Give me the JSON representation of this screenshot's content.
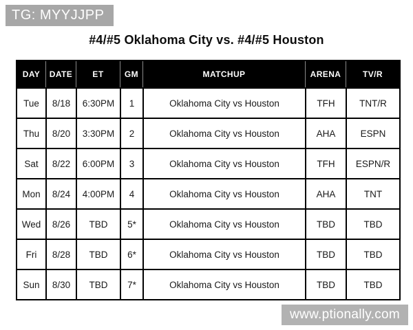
{
  "tag": {
    "label": "TG: MYYJJPP"
  },
  "title": "#4/#5 Oklahoma City vs. #4/#5 Houston",
  "table": {
    "columns": [
      "DAY",
      "DATE",
      "ET",
      "GM",
      "MATCHUP",
      "ARENA",
      "TV/R"
    ],
    "rows": [
      {
        "day": "Tue",
        "date": "8/18",
        "et": "6:30PM",
        "gm": "1",
        "matchup": "Oklahoma City vs Houston",
        "arena": "TFH",
        "tv": "TNT/R"
      },
      {
        "day": "Thu",
        "date": "8/20",
        "et": "3:30PM",
        "gm": "2",
        "matchup": "Oklahoma City vs Houston",
        "arena": "AHA",
        "tv": "ESPN"
      },
      {
        "day": "Sat",
        "date": "8/22",
        "et": "6:00PM",
        "gm": "3",
        "matchup": "Oklahoma City vs Houston",
        "arena": "TFH",
        "tv": "ESPN/R"
      },
      {
        "day": "Mon",
        "date": "8/24",
        "et": "4:00PM",
        "gm": "4",
        "matchup": "Oklahoma City vs Houston",
        "arena": "AHA",
        "tv": "TNT"
      },
      {
        "day": "Wed",
        "date": "8/26",
        "et": "TBD",
        "gm": "5*",
        "matchup": "Oklahoma City vs Houston",
        "arena": "TBD",
        "tv": "TBD"
      },
      {
        "day": "Fri",
        "date": "8/28",
        "et": "TBD",
        "gm": "6*",
        "matchup": "Oklahoma City vs Houston",
        "arena": "TBD",
        "tv": "TBD"
      },
      {
        "day": "Sun",
        "date": "8/30",
        "et": "TBD",
        "gm": "7*",
        "matchup": "Oklahoma City vs Houston",
        "arena": "TBD",
        "tv": "TBD"
      }
    ]
  },
  "watermark": {
    "label": "www.ptionally.com"
  },
  "colors": {
    "header_bg": "#000000",
    "header_text": "#ffffff",
    "header_divider": "#8a8a8a",
    "table_border": "#000000",
    "tag_bg": "#a7a7a7",
    "watermark_bg": "#b2b2b2"
  }
}
